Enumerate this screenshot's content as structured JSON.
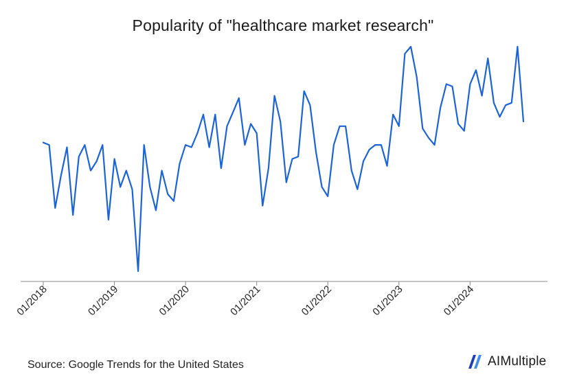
{
  "chart_data": {
    "type": "line",
    "title": "Popularity of \"healthcare market research\"",
    "xlabel": "",
    "ylabel": "",
    "x_tick_labels": [
      "01/2018",
      "01/2019",
      "01/2020",
      "01/2021",
      "01/2022",
      "01/2023",
      "01/2024"
    ],
    "x_start": "01/2018",
    "x_interval": "month",
    "ylim": [
      0,
      100
    ],
    "grid": false,
    "line_color": "#1a63d8",
    "series": [
      {
        "values": [
          59,
          58,
          31,
          45,
          57,
          28,
          53,
          58,
          47,
          51,
          58,
          26,
          52,
          40,
          47,
          39,
          4,
          58,
          40,
          30,
          47,
          37,
          34,
          50,
          58,
          57,
          63,
          71,
          57,
          71,
          48,
          66,
          72,
          78,
          58,
          67,
          63,
          32,
          48,
          79,
          68,
          42,
          52,
          53,
          81,
          75,
          55,
          40,
          36,
          58,
          66,
          66,
          47,
          39,
          51,
          56,
          58,
          58,
          49,
          71,
          66,
          97,
          100,
          87,
          65,
          61,
          58,
          74,
          84,
          83,
          67,
          64,
          84,
          90,
          79,
          95,
          76,
          70,
          75,
          76,
          100,
          68
        ]
      }
    ]
  },
  "footer": {
    "source": "Source: Google Trends for the United States",
    "logo_text": "AIMultiple"
  }
}
